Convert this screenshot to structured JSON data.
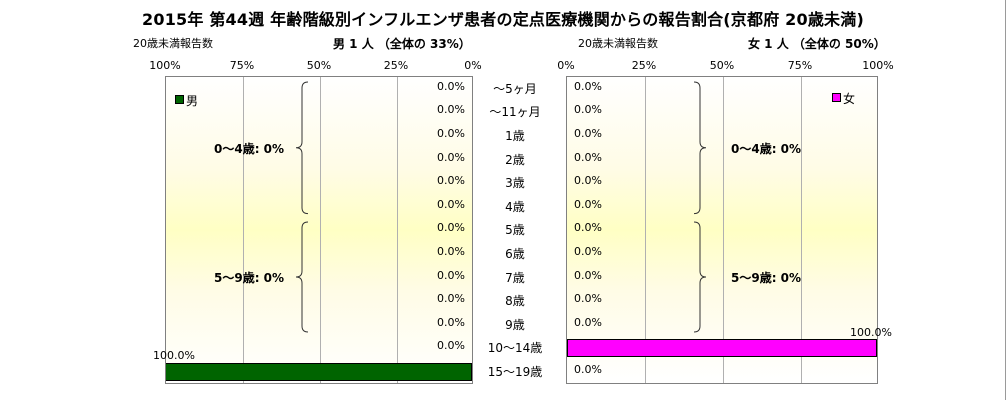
{
  "title": "2015年 第44週 年齢階級別インフルエンザ患者の定点医療機関からの報告割合(京都府 20歳未満)",
  "left_header": {
    "caption": "20歳未満報告数",
    "stat": "男  1 人  （全体の   33%）"
  },
  "right_header": {
    "caption": "20歳未満報告数",
    "stat": "女  1 人  （全体の   50%）"
  },
  "left_ticks": [
    "100%",
    "75%",
    "50%",
    "25%",
    "0%"
  ],
  "right_ticks": [
    "0%",
    "25%",
    "50%",
    "75%",
    "100%"
  ],
  "colors": {
    "male": "#006400",
    "female": "#ff00ff"
  },
  "legend": {
    "male": "男",
    "female": "女"
  },
  "group_labels": {
    "male": [
      "0～4歳: 0%",
      "5～9歳: 0%"
    ],
    "female": [
      "0～4歳: 0%",
      "5～9歳: 0%"
    ]
  },
  "chart_data": {
    "type": "bar",
    "orientation": "horizontal-population-pyramid",
    "title": "2015年 第44週 年齢階級別インフルエンザ患者の定点医療機関からの報告割合(京都府 20歳未満)",
    "categories": [
      "～5ヶ月",
      "～11ヶ月",
      "1歳",
      "2歳",
      "3歳",
      "4歳",
      "5歳",
      "6歳",
      "7歳",
      "8歳",
      "9歳",
      "10～14歳",
      "15～19歳"
    ],
    "xlim": [
      0,
      100
    ],
    "unit": "%",
    "grid": true,
    "series": [
      {
        "name": "男",
        "values": [
          0,
          0,
          0,
          0,
          0,
          0,
          0,
          0,
          0,
          0,
          0,
          0,
          100
        ],
        "labels": [
          "0.0%",
          "0.0%",
          "0.0%",
          "0.0%",
          "0.0%",
          "0.0%",
          "0.0%",
          "0.0%",
          "0.0%",
          "0.0%",
          "0.0%",
          "0.0%",
          "100.0%"
        ]
      },
      {
        "name": "女",
        "values": [
          0,
          0,
          0,
          0,
          0,
          0,
          0,
          0,
          0,
          0,
          0,
          100,
          0
        ],
        "labels": [
          "0.0%",
          "0.0%",
          "0.0%",
          "0.0%",
          "0.0%",
          "0.0%",
          "0.0%",
          "0.0%",
          "0.0%",
          "0.0%",
          "0.0%",
          "100.0%",
          "0.0%"
        ]
      }
    ]
  }
}
